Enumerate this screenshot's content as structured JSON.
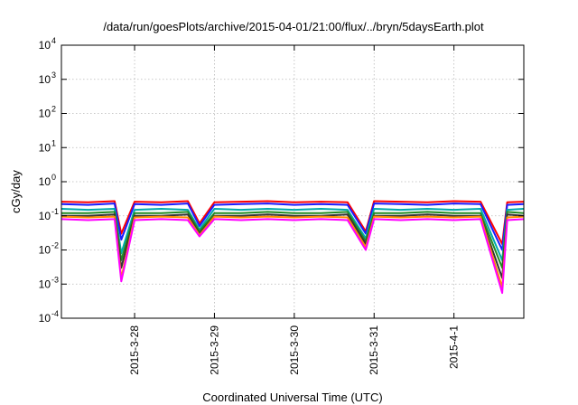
{
  "chart_data": {
    "type": "line",
    "title": "/data/run/goesPlots/archive/2015-04-01/21:00/flux/../bryn/5daysEarth.plot",
    "xlabel": "Coordinated Universal Time (UTC)",
    "ylabel": "cGy/day",
    "yscale": "log",
    "ylim": [
      0.0001,
      10000
    ],
    "xlim": [
      "2015-03-27 02:00",
      "2015-04-01 21:00"
    ],
    "y_ticks": [
      {
        "value": 0.0001,
        "base": "10",
        "exp": "-4"
      },
      {
        "value": 0.001,
        "base": "10",
        "exp": "-3"
      },
      {
        "value": 0.01,
        "base": "10",
        "exp": "-2"
      },
      {
        "value": 0.1,
        "base": "10",
        "exp": "-1"
      },
      {
        "value": 1,
        "base": "10",
        "exp": "0"
      },
      {
        "value": 10,
        "base": "10",
        "exp": "1"
      },
      {
        "value": 100,
        "base": "10",
        "exp": "2"
      },
      {
        "value": 1000,
        "base": "10",
        "exp": "3"
      },
      {
        "value": 10000,
        "base": "10",
        "exp": "4"
      }
    ],
    "x_ticks": [
      {
        "value": "2015-03-28",
        "label": "2015-3-28"
      },
      {
        "value": "2015-03-29",
        "label": "2015-3-29"
      },
      {
        "value": "2015-03-30",
        "label": "2015-3-30"
      },
      {
        "value": "2015-03-31",
        "label": "2015-3-31"
      },
      {
        "value": "2015-04-01",
        "label": "2015-4-1"
      }
    ],
    "grid": true,
    "legend": "none",
    "x": [
      "2015-03-27 02:00",
      "2015-03-27 10:00",
      "2015-03-27 18:00",
      "2015-03-28 00:00",
      "2015-03-28 08:00",
      "2015-03-28 16:00",
      "2015-03-29 00:00",
      "2015-03-29 08:00",
      "2015-03-29 16:00",
      "2015-03-30 00:00",
      "2015-03-30 08:00",
      "2015-03-30 16:00",
      "2015-03-31 00:00",
      "2015-03-31 08:00",
      "2015-03-31 16:00",
      "2015-04-01 00:00",
      "2015-04-01 08:00",
      "2015-04-01 16:00",
      "2015-04-01 21:00"
    ],
    "series": [
      {
        "color": "#ff0000",
        "values": [
          0.26,
          0.25,
          0.27,
          0.26,
          0.25,
          0.27,
          0.25,
          0.26,
          0.27,
          0.25,
          0.26,
          0.25,
          0.27,
          0.26,
          0.25,
          0.27,
          0.26,
          0.25,
          0.26
        ]
      },
      {
        "color": "#1a1aff",
        "values": [
          0.22,
          0.21,
          0.23,
          0.22,
          0.21,
          0.23,
          0.21,
          0.22,
          0.23,
          0.21,
          0.22,
          0.21,
          0.23,
          0.22,
          0.21,
          0.23,
          0.22,
          0.21,
          0.22
        ]
      },
      {
        "color": "#00aaaa",
        "values": [
          0.16,
          0.15,
          0.16,
          0.15,
          0.16,
          0.15,
          0.16,
          0.15,
          0.16,
          0.15,
          0.16,
          0.15,
          0.16,
          0.15,
          0.16,
          0.15,
          0.16,
          0.15,
          0.16
        ]
      },
      {
        "color": "#228b22",
        "values": [
          0.12,
          0.12,
          0.13,
          0.12,
          0.12,
          0.13,
          0.12,
          0.12,
          0.13,
          0.12,
          0.12,
          0.13,
          0.12,
          0.12,
          0.13,
          0.12,
          0.12,
          0.13,
          0.12
        ]
      },
      {
        "color": "#333333",
        "values": [
          0.1,
          0.1,
          0.11,
          0.1,
          0.1,
          0.11,
          0.1,
          0.1,
          0.11,
          0.1,
          0.1,
          0.11,
          0.1,
          0.1,
          0.11,
          0.1,
          0.1,
          0.11,
          0.1
        ]
      },
      {
        "color": "#ff8c00",
        "values": [
          0.095,
          0.09,
          0.095,
          0.09,
          0.095,
          0.09,
          0.095,
          0.09,
          0.095,
          0.09,
          0.095,
          0.09,
          0.095,
          0.09,
          0.095,
          0.09,
          0.095,
          0.09,
          0.095
        ]
      },
      {
        "color": "#ff00ff",
        "values": [
          0.08,
          0.075,
          0.08,
          0.075,
          0.08,
          0.075,
          0.08,
          0.075,
          0.08,
          0.075,
          0.08,
          0.075,
          0.08,
          0.075,
          0.08,
          0.075,
          0.08,
          0.075,
          0.08
        ]
      }
    ],
    "dips": [
      {
        "x": "2015-03-27 20:00",
        "values": [
          0.03,
          0.02,
          0.008,
          0.005,
          0.003,
          0.0015,
          0.0012
        ]
      },
      {
        "x": "2015-03-28 19:30",
        "values": [
          0.06,
          0.05,
          0.04,
          0.035,
          0.03,
          0.027,
          0.025
        ]
      },
      {
        "x": "2015-03-30 21:30",
        "values": [
          0.035,
          0.03,
          0.022,
          0.018,
          0.015,
          0.012,
          0.01
        ]
      },
      {
        "x": "2015-04-01 14:30",
        "values": [
          0.015,
          0.01,
          0.005,
          0.003,
          0.0015,
          0.0008,
          0.00055
        ]
      }
    ]
  }
}
